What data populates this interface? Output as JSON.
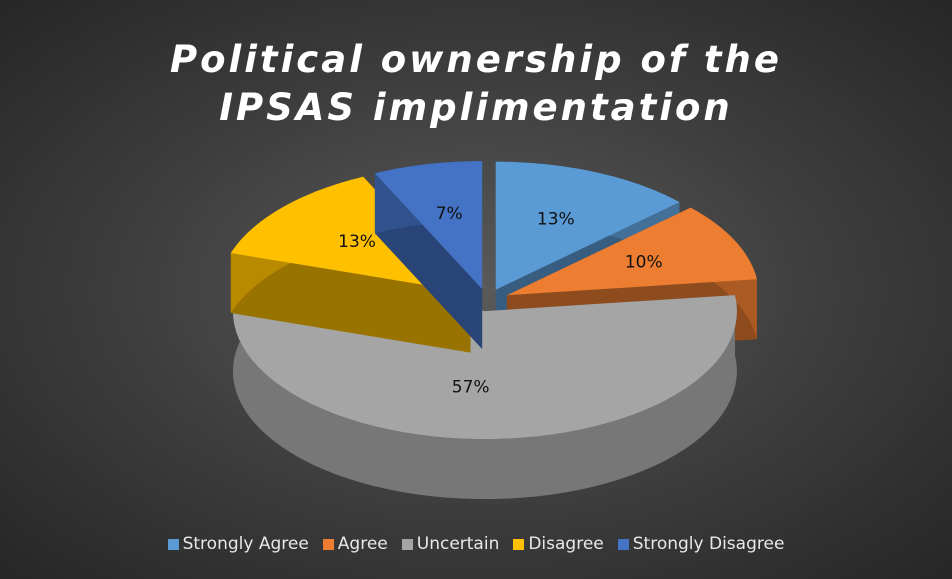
{
  "chart_data": {
    "type": "pie",
    "title": "Political ownership of the IPSAS implimentation",
    "categories": [
      "Strongly Agree",
      "Agree",
      "Uncertain",
      "Disagree",
      "Strongly Disagree"
    ],
    "values": [
      13,
      10,
      57,
      13,
      7
    ],
    "value_labels": [
      "13%",
      "10%",
      "57%",
      "13%",
      "7%"
    ],
    "colors": [
      "#5b9bd5",
      "#ed7d31",
      "#a5a5a5",
      "#ffc000",
      "#4472c4"
    ],
    "legend": "bottom"
  }
}
